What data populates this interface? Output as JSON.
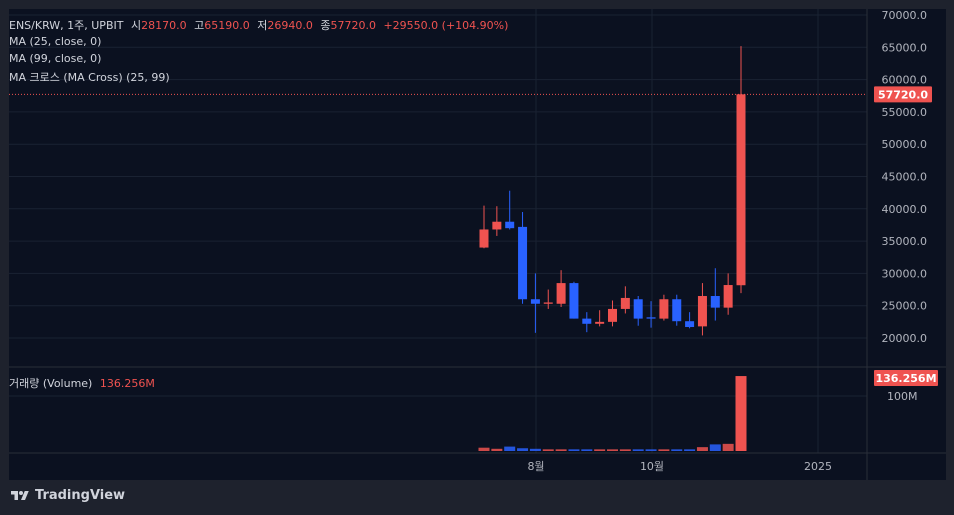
{
  "header": {
    "symbol": "ENS/KRW, 1주, UPBIT",
    "open_label": "시",
    "open": "28170.0",
    "high_label": "고",
    "high": "65190.0",
    "low_label": "저",
    "low": "26940.0",
    "close_label": "종",
    "close": "57720.0",
    "change": "+29550.0 (+104.90%)",
    "ma1": "MA (25, close, 0)",
    "ma2": "MA (99, close, 0)",
    "ma_cross": "MA 크로스 (MA Cross) (25, 99)"
  },
  "volume_legend": {
    "label": "거래량 (Volume)",
    "value": "136.256M"
  },
  "footer": {
    "brand": "TradingView"
  },
  "colors": {
    "up": "#ef5350",
    "down": "#2962ff",
    "background": "#0b1120",
    "grid": "#1a2232"
  },
  "chart_data": {
    "type": "candlestick",
    "price_axis": {
      "ticks": [
        20000,
        25000,
        30000,
        35000,
        40000,
        45000,
        50000,
        55000,
        60000,
        65000,
        70000
      ],
      "last_price": "57720.0"
    },
    "volume_axis": {
      "ticks": [
        "100M"
      ],
      "last_value": "136.256M"
    },
    "x_ticks": [
      "8월",
      "10월",
      "2025"
    ],
    "candles": [
      {
        "o": 34000,
        "h": 40500,
        "l": 33900,
        "c": 36800
      },
      {
        "o": 36800,
        "h": 40400,
        "l": 35800,
        "c": 38000
      },
      {
        "o": 38000,
        "h": 42800,
        "l": 36800,
        "c": 37000
      },
      {
        "o": 37200,
        "h": 39500,
        "l": 25300,
        "c": 26000
      },
      {
        "o": 26000,
        "h": 30000,
        "l": 20800,
        "c": 25300
      },
      {
        "o": 25300,
        "h": 27500,
        "l": 24500,
        "c": 25500
      },
      {
        "o": 25300,
        "h": 30500,
        "l": 24800,
        "c": 28500
      },
      {
        "o": 28500,
        "h": 28700,
        "l": 23000,
        "c": 23000
      },
      {
        "o": 23000,
        "h": 24000,
        "l": 20900,
        "c": 22200
      },
      {
        "o": 22200,
        "h": 24300,
        "l": 21800,
        "c": 22500
      },
      {
        "o": 22500,
        "h": 25800,
        "l": 21800,
        "c": 24500
      },
      {
        "o": 24500,
        "h": 28000,
        "l": 23800,
        "c": 26200
      },
      {
        "o": 26000,
        "h": 26500,
        "l": 21900,
        "c": 23000
      },
      {
        "o": 23200,
        "h": 25700,
        "l": 21600,
        "c": 23000
      },
      {
        "o": 23000,
        "h": 26700,
        "l": 22700,
        "c": 26000
      },
      {
        "o": 26000,
        "h": 26700,
        "l": 21900,
        "c": 22600
      },
      {
        "o": 22600,
        "h": 24000,
        "l": 21500,
        "c": 21700
      },
      {
        "o": 21800,
        "h": 28500,
        "l": 20400,
        "c": 26500
      },
      {
        "o": 26500,
        "h": 30800,
        "l": 22700,
        "c": 24700
      },
      {
        "o": 24700,
        "h": 30000,
        "l": 23600,
        "c": 28200
      },
      {
        "o": 28170,
        "h": 65190,
        "l": 26940,
        "c": 57720
      }
    ],
    "volume_millions": [
      6,
      4,
      8,
      5,
      4,
      3,
      3,
      3,
      3,
      3,
      3,
      3,
      3,
      3,
      3,
      3,
      3,
      7,
      12,
      13,
      136.256
    ]
  }
}
